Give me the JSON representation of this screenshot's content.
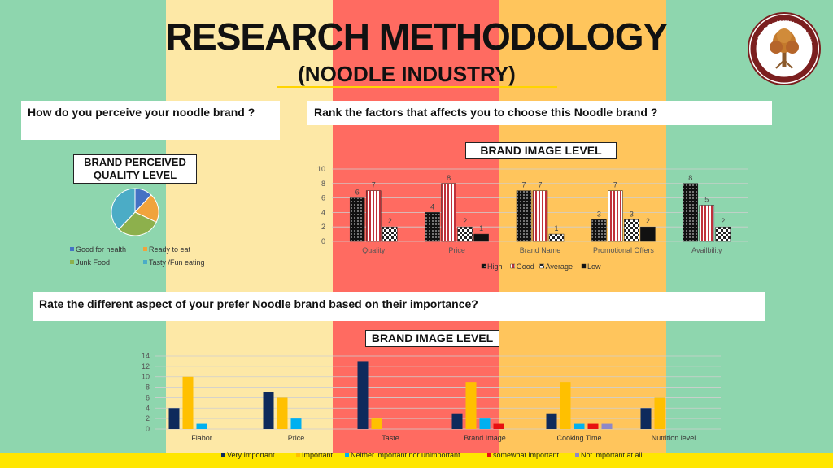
{
  "title": "RESEARCH METHODOLOGY",
  "subtitle": "(NOODLE INDUSTRY)",
  "logo_text": "SRI SRI UNIVERSITY",
  "questions": {
    "q1": "How do you perceive your noodle brand ?",
    "q2": "Rank the factors that affects you to choose this Noodle brand ?",
    "q3": "Rate the different aspect of your prefer Noodle brand based on their importance?"
  },
  "colors": {
    "stripe_green": "#8ED6AE",
    "stripe_cream": "#FDE8A6",
    "stripe_red": "#FF6B61",
    "stripe_orange": "#FFC55C",
    "bottom_bar": "#FFE600",
    "logo_maroon": "#7B1F1F"
  },
  "chart_data": [
    {
      "type": "pie",
      "title": "BRAND PERCEIVED QUALITY LEVEL",
      "title_lines": [
        "BRAND PERCEIVED",
        "QUALITY LEVEL"
      ],
      "categories": [
        "Good for health",
        "Ready to eat",
        "Junk Food",
        "Tasty /Fun eating"
      ],
      "values": [
        12,
        20,
        30,
        38
      ],
      "colors": [
        "#4472C4",
        "#F0A33C",
        "#8DB04C",
        "#4BACC6"
      ],
      "legend": "bottom"
    },
    {
      "type": "bar",
      "title": "BRAND IMAGE LEVEL",
      "categories": [
        "Quality",
        "Price",
        "Brand Name",
        "Promotional Offers",
        "Availbility"
      ],
      "series": [
        {
          "name": "High",
          "values": [
            6,
            4,
            7,
            3,
            8
          ],
          "pattern": "dots"
        },
        {
          "name": "Good",
          "values": [
            7,
            8,
            7,
            7,
            5
          ],
          "pattern": "stripes"
        },
        {
          "name": "Average",
          "values": [
            2,
            2,
            1,
            3,
            2
          ],
          "pattern": "checker"
        },
        {
          "name": "Low",
          "values": [
            null,
            1,
            null,
            2,
            null
          ],
          "pattern": "solid"
        }
      ],
      "ylim": [
        0,
        10
      ],
      "yticks": [
        0,
        2,
        4,
        6,
        8,
        10
      ],
      "grid": true,
      "legend": "bottom",
      "data_labels": true
    },
    {
      "type": "bar",
      "title": "BRAND IMAGE LEVEL",
      "categories": [
        "Flabor",
        "Price",
        "Taste",
        "Brand Image",
        "Cooking Time",
        "Nutrition level"
      ],
      "series": [
        {
          "name": "Very Important",
          "values": [
            4,
            7,
            13,
            3,
            3,
            4
          ],
          "color": "#0E2A5C"
        },
        {
          "name": "Important",
          "values": [
            10,
            6,
            2,
            9,
            9,
            6
          ],
          "color": "#FFC000"
        },
        {
          "name": "Neither important nor unimportant",
          "values": [
            1,
            2,
            0,
            2,
            1,
            0
          ],
          "color": "#00B0F0"
        },
        {
          "name": "somewhat important",
          "values": [
            0,
            0,
            0,
            1,
            1,
            0
          ],
          "color": "#E81010"
        },
        {
          "name": "Not important at all",
          "values": [
            0,
            0,
            0,
            0,
            1,
            0
          ],
          "color": "#8E88C8"
        }
      ],
      "ylim": [
        0,
        14
      ],
      "yticks": [
        0,
        2,
        4,
        6,
        8,
        10,
        12,
        14
      ],
      "grid": true,
      "legend": "bottom"
    }
  ]
}
